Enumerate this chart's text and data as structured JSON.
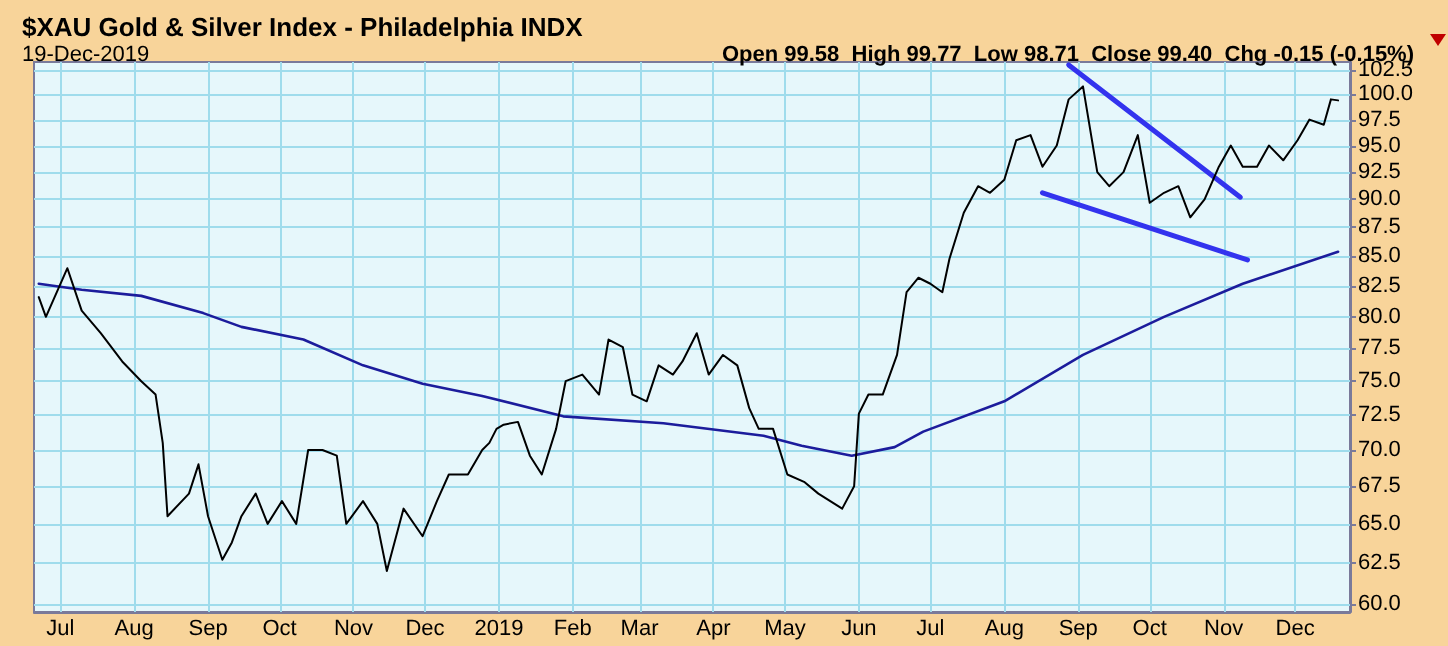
{
  "chart_data": {
    "type": "line",
    "title": "$XAU Gold & Silver Index - Philadelphia INDX",
    "subtitle": "19-Dec-2019",
    "annotations": [
      "Open 99.58  High 99.77  Low 98.71  Close 99.40  Chg -0.15 (-0.15%)"
    ],
    "log": "y",
    "grid": true,
    "marker": "none",
    "line_style": "solid",
    "xlim": [
      "2018-06-20",
      "2019-12-24"
    ],
    "xticks": [
      {
        "value": "2018-07-01",
        "label": "Jul"
      },
      {
        "value": "2018-08-01",
        "label": "Aug"
      },
      {
        "value": "2018-09-01",
        "label": "Sep"
      },
      {
        "value": "2018-10-01",
        "label": "Oct"
      },
      {
        "value": "2018-11-01",
        "label": "Nov"
      },
      {
        "value": "2018-12-01",
        "label": "Dec"
      },
      {
        "value": "2019-01-01",
        "label": "2019"
      },
      {
        "value": "2019-02-01",
        "label": "Feb"
      },
      {
        "value": "2019-03-01",
        "label": "Mar"
      },
      {
        "value": "2019-04-01",
        "label": "Apr"
      },
      {
        "value": "2019-05-01",
        "label": "May"
      },
      {
        "value": "2019-06-01",
        "label": "Jun"
      },
      {
        "value": "2019-07-01",
        "label": "Jul"
      },
      {
        "value": "2019-08-01",
        "label": "Aug"
      },
      {
        "value": "2019-09-01",
        "label": "Sep"
      },
      {
        "value": "2019-10-01",
        "label": "Oct"
      },
      {
        "value": "2019-11-01",
        "label": "Nov"
      },
      {
        "value": "2019-12-01",
        "label": "Dec"
      }
    ],
    "ylim": [
      59.5,
      103.3
    ],
    "yticks": [
      {
        "value": 60,
        "label": "60.0"
      },
      {
        "value": 62.5,
        "label": "62.5"
      },
      {
        "value": 65,
        "label": "65.0"
      },
      {
        "value": 67.5,
        "label": "67.5"
      },
      {
        "value": 70,
        "label": "70.0"
      },
      {
        "value": 72.5,
        "label": "72.5"
      },
      {
        "value": 75,
        "label": "75.0"
      },
      {
        "value": 77.5,
        "label": "77.5"
      },
      {
        "value": 80,
        "label": "80.0"
      },
      {
        "value": 82.5,
        "label": "82.5"
      },
      {
        "value": 85,
        "label": "85.0"
      },
      {
        "value": 87.5,
        "label": "87.5"
      },
      {
        "value": 90,
        "label": "90.0"
      },
      {
        "value": 92.5,
        "label": "92.5"
      },
      {
        "value": 95,
        "label": "95.0"
      },
      {
        "value": 97.5,
        "label": "97.5"
      },
      {
        "value": 100,
        "label": "100.0"
      },
      {
        "value": 102.5,
        "label": "102.5"
      }
    ],
    "series": [
      {
        "color": "#000000",
        "x": [
          "2018-06-22",
          "2018-06-25",
          "2018-07-04",
          "2018-07-10",
          "2018-07-18",
          "2018-07-27",
          "2018-08-04",
          "2018-08-10",
          "2018-08-13",
          "2018-08-15",
          "2018-08-24",
          "2018-08-28",
          "2018-09-01",
          "2018-09-07",
          "2018-09-11",
          "2018-09-15",
          "2018-09-21",
          "2018-09-26",
          "2018-10-02",
          "2018-10-08",
          "2018-10-13",
          "2018-10-19",
          "2018-10-25",
          "2018-10-29",
          "2018-11-05",
          "2018-11-11",
          "2018-11-15",
          "2018-11-22",
          "2018-11-30",
          "2018-12-06",
          "2018-12-11",
          "2018-12-19",
          "2018-12-25",
          "2018-12-28",
          "2018-12-31",
          "2019-01-03",
          "2019-01-09",
          "2019-01-14",
          "2019-01-19",
          "2019-01-25",
          "2019-01-29",
          "2019-02-05",
          "2019-02-12",
          "2019-02-16",
          "2019-02-22",
          "2019-02-26",
          "2019-03-04",
          "2019-03-09",
          "2019-03-15",
          "2019-03-19",
          "2019-03-25",
          "2019-03-30",
          "2019-04-05",
          "2019-04-11",
          "2019-04-16",
          "2019-04-20",
          "2019-04-26",
          "2019-05-02",
          "2019-05-09",
          "2019-05-15",
          "2019-05-20",
          "2019-05-25",
          "2019-05-30",
          "2019-06-01",
          "2019-06-05",
          "2019-06-11",
          "2019-06-17",
          "2019-06-21",
          "2019-06-26",
          "2019-07-01",
          "2019-07-06",
          "2019-07-09",
          "2019-07-15",
          "2019-07-21",
          "2019-07-26",
          "2019-08-01",
          "2019-08-06",
          "2019-08-12",
          "2019-08-17",
          "2019-08-23",
          "2019-08-28",
          "2019-09-03",
          "2019-09-09",
          "2019-09-14",
          "2019-09-20",
          "2019-09-26",
          "2019-10-01",
          "2019-10-07",
          "2019-10-13",
          "2019-10-18",
          "2019-10-24",
          "2019-10-30",
          "2019-11-04",
          "2019-11-09",
          "2019-11-15",
          "2019-11-20",
          "2019-11-26",
          "2019-12-02",
          "2019-12-07",
          "2019-12-13",
          "2019-12-16",
          "2019-12-19"
        ],
        "values": [
          81.6,
          80,
          84,
          80.5,
          78.7,
          76.5,
          75,
          74,
          70.5,
          65.5,
          67,
          69,
          65.5,
          62.7,
          63.8,
          65.5,
          67,
          65,
          66.5,
          65,
          70,
          70,
          69.6,
          65,
          66.5,
          65,
          62,
          66,
          64.2,
          66.5,
          68.3,
          68.3,
          70,
          70.5,
          71.5,
          71.8,
          72,
          69.6,
          68.3,
          71.5,
          75,
          75.5,
          74,
          78.2,
          77.6,
          74,
          73.5,
          76.2,
          75.5,
          76.5,
          78.7,
          75.5,
          77,
          76.2,
          73,
          71.5,
          71.5,
          68.3,
          67.8,
          67,
          66.5,
          66,
          67.5,
          72.6,
          74,
          74,
          77,
          82,
          83.2,
          82.7,
          82,
          84.8,
          88.8,
          91.2,
          90.6,
          91.8,
          95.5,
          96,
          93,
          95,
          99.5,
          100.8,
          92.5,
          91.2,
          92.5,
          96,
          89.7,
          90.6,
          91.2,
          88.4,
          90,
          93,
          95,
          93,
          93,
          95,
          93.6,
          95.5,
          97.5,
          97,
          99.5,
          99.4
        ]
      },
      {
        "color": "#1c1c9c",
        "x": [
          "2018-06-22",
          "2018-07-10",
          "2018-08-04",
          "2018-08-30",
          "2018-09-15",
          "2018-10-11",
          "2018-11-05",
          "2018-11-30",
          "2018-12-25",
          "2019-01-28",
          "2019-03-11",
          "2019-04-22",
          "2019-05-08",
          "2019-05-29",
          "2019-06-16",
          "2019-06-28",
          "2019-08-01",
          "2019-09-03",
          "2019-10-07",
          "2019-11-09",
          "2019-12-19"
        ],
        "values": [
          82.7,
          82.2,
          81.7,
          80.3,
          79.2,
          78.2,
          76.2,
          74.8,
          73.9,
          72.4,
          71.9,
          71,
          70.3,
          69.6,
          70.2,
          71.3,
          73.5,
          77,
          80,
          82.7,
          85.4
        ]
      },
      {
        "color": "#3333ee",
        "x": [
          "2019-08-28",
          "2019-11-08"
        ],
        "values": [
          103,
          90.2
        ]
      },
      {
        "color": "#3333ee",
        "x": [
          "2019-08-17",
          "2019-11-11"
        ],
        "values": [
          90.6,
          84.7
        ]
      }
    ]
  }
}
